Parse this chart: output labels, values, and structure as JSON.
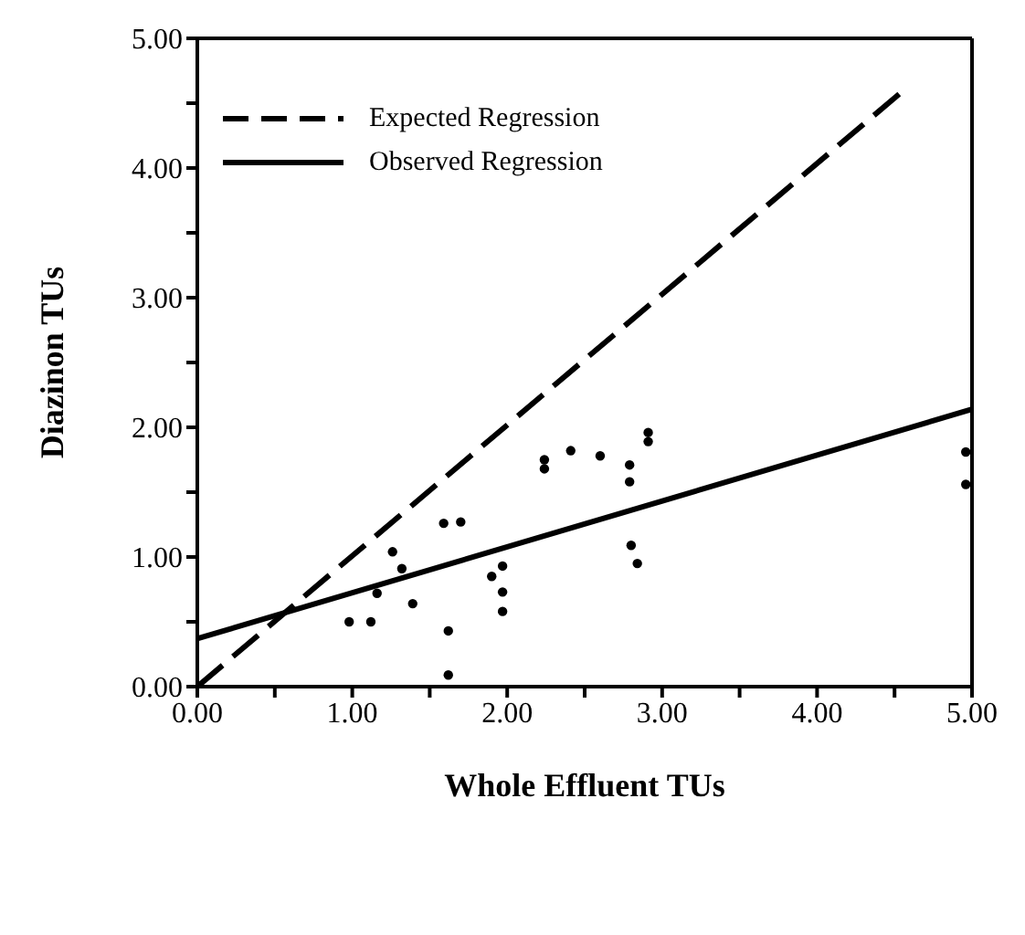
{
  "chart_data": {
    "type": "scatter",
    "xlabel": "Whole Effluent TUs",
    "ylabel": "Diazinon TUs",
    "xlim": [
      0,
      5
    ],
    "ylim": [
      0,
      5
    ],
    "xticks": [
      {
        "value": 0,
        "label": "0.00"
      },
      {
        "value": 0.5,
        "label": null
      },
      {
        "value": 1,
        "label": "1.00"
      },
      {
        "value": 1.5,
        "label": null
      },
      {
        "value": 2,
        "label": "2.00"
      },
      {
        "value": 2.5,
        "label": null
      },
      {
        "value": 3,
        "label": "3.00"
      },
      {
        "value": 3.5,
        "label": null
      },
      {
        "value": 4,
        "label": "4.00"
      },
      {
        "value": 4.5,
        "label": null
      },
      {
        "value": 5,
        "label": "5.00"
      }
    ],
    "yticks": [
      {
        "value": 0,
        "label": "0.00"
      },
      {
        "value": 0.5,
        "label": null
      },
      {
        "value": 1,
        "label": "1.00"
      },
      {
        "value": 1.5,
        "label": null
      },
      {
        "value": 2,
        "label": "2.00"
      },
      {
        "value": 2.5,
        "label": null
      },
      {
        "value": 3,
        "label": "3.00"
      },
      {
        "value": 3.5,
        "label": null
      },
      {
        "value": 4,
        "label": "4.00"
      },
      {
        "value": 4.5,
        "label": null
      },
      {
        "value": 5,
        "label": "5.00"
      }
    ],
    "legend": "top left",
    "grid": false,
    "series": [
      {
        "color": "#000000",
        "marker": "circle",
        "x": [
          0.98,
          1.12,
          1.16,
          1.26,
          1.32,
          1.39,
          1.59,
          1.7,
          1.62,
          1.62,
          1.9,
          1.97,
          1.97,
          1.97,
          2.24,
          2.24,
          2.41,
          2.6,
          2.79,
          2.79,
          2.8,
          2.84,
          2.91,
          2.91,
          4.96,
          4.96
        ],
        "values": [
          0.5,
          0.5,
          0.72,
          1.04,
          0.91,
          0.64,
          1.26,
          1.27,
          0.43,
          0.09,
          0.85,
          0.93,
          0.73,
          0.58,
          1.75,
          1.68,
          1.82,
          1.78,
          1.71,
          1.58,
          1.09,
          0.95,
          1.96,
          1.89,
          1.81,
          1.56
        ]
      },
      {
        "type": "line",
        "name": "Expected Regression",
        "color": "#000000",
        "line_style": "dashed",
        "x": [
          0,
          4.53
        ],
        "values": [
          0,
          4.57
        ]
      },
      {
        "type": "line",
        "name": "Observed Regression",
        "color": "#000000",
        "line_style": "solid",
        "x": [
          0,
          5
        ],
        "values": [
          0.37,
          2.14
        ]
      }
    ]
  }
}
